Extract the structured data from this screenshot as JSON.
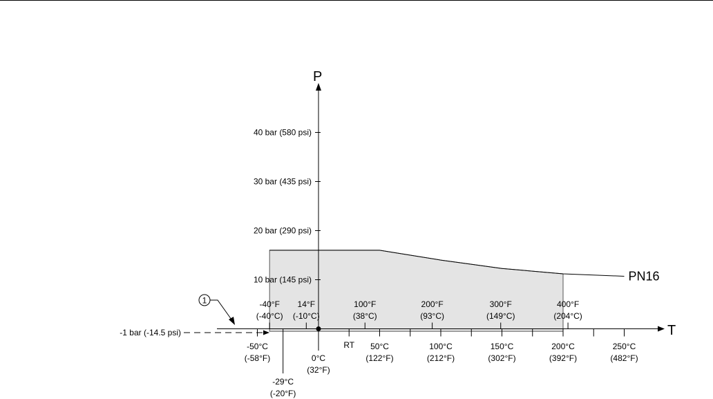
{
  "chart_data": {
    "type": "area",
    "title": "",
    "y_axis": {
      "label": "P",
      "ticks": [
        {
          "value": 10,
          "label": "10 bar (145 psi)"
        },
        {
          "value": 20,
          "label": "20 bar (290 psi)"
        },
        {
          "value": 30,
          "label": "30 bar (435 psi)"
        },
        {
          "value": 40,
          "label": "40 bar (580 psi)"
        }
      ],
      "vacuum_limit": {
        "value": -1,
        "label": "-1 bar (-14.5 psi)"
      }
    },
    "x_axis": {
      "label": "T",
      "celsius_ticks": [
        {
          "value": -50,
          "label_c": "-50°C",
          "label_f": "(-58°F)"
        },
        {
          "value": 0,
          "label_c": "0°C",
          "label_f": "(32°F)"
        },
        {
          "value": 50,
          "label_c": "50°C",
          "label_f": "(122°F)"
        },
        {
          "value": 100,
          "label_c": "100°C",
          "label_f": "(212°F)"
        },
        {
          "value": 150,
          "label_c": "150°C",
          "label_f": "(302°F)"
        },
        {
          "value": 200,
          "label_c": "200°C",
          "label_f": "(392°F)"
        },
        {
          "value": 250,
          "label_c": "250°C",
          "label_f": "(482°F)"
        }
      ],
      "minor_ticks_c": [
        25,
        75,
        125,
        175,
        225
      ],
      "fahrenheit_ticks": [
        {
          "value": -40,
          "label_f": "-40°F",
          "label_c": "(-40°C)"
        },
        {
          "value": -10,
          "label_f": "14°F",
          "label_c": "(-10°C)"
        },
        {
          "value": 38,
          "label_f": "100°F",
          "label_c": "(38°C)"
        },
        {
          "value": 93,
          "label_f": "200°F",
          "label_c": "(93°C)"
        },
        {
          "value": 149,
          "label_f": "300°F",
          "label_c": "(149°C)"
        },
        {
          "value": 204,
          "label_f": "400°F",
          "label_c": "(204°C)"
        }
      ],
      "rt_label": "RT",
      "special_tick": {
        "value": -29,
        "label_c": "-29°C",
        "label_f": "(-20°F)"
      }
    },
    "series": [
      {
        "name": "PN16",
        "x": [
          -40,
          50,
          100,
          150,
          200,
          250
        ],
        "y": [
          16,
          16,
          14,
          12.3,
          11.2,
          10.7
        ]
      }
    ],
    "shaded_region": {
      "x": [
        -40,
        50,
        100,
        150,
        200,
        200,
        -40
      ],
      "y": [
        16,
        16,
        14,
        12.3,
        11.2,
        -1,
        -1
      ]
    },
    "annotation": {
      "marker": "1"
    }
  }
}
